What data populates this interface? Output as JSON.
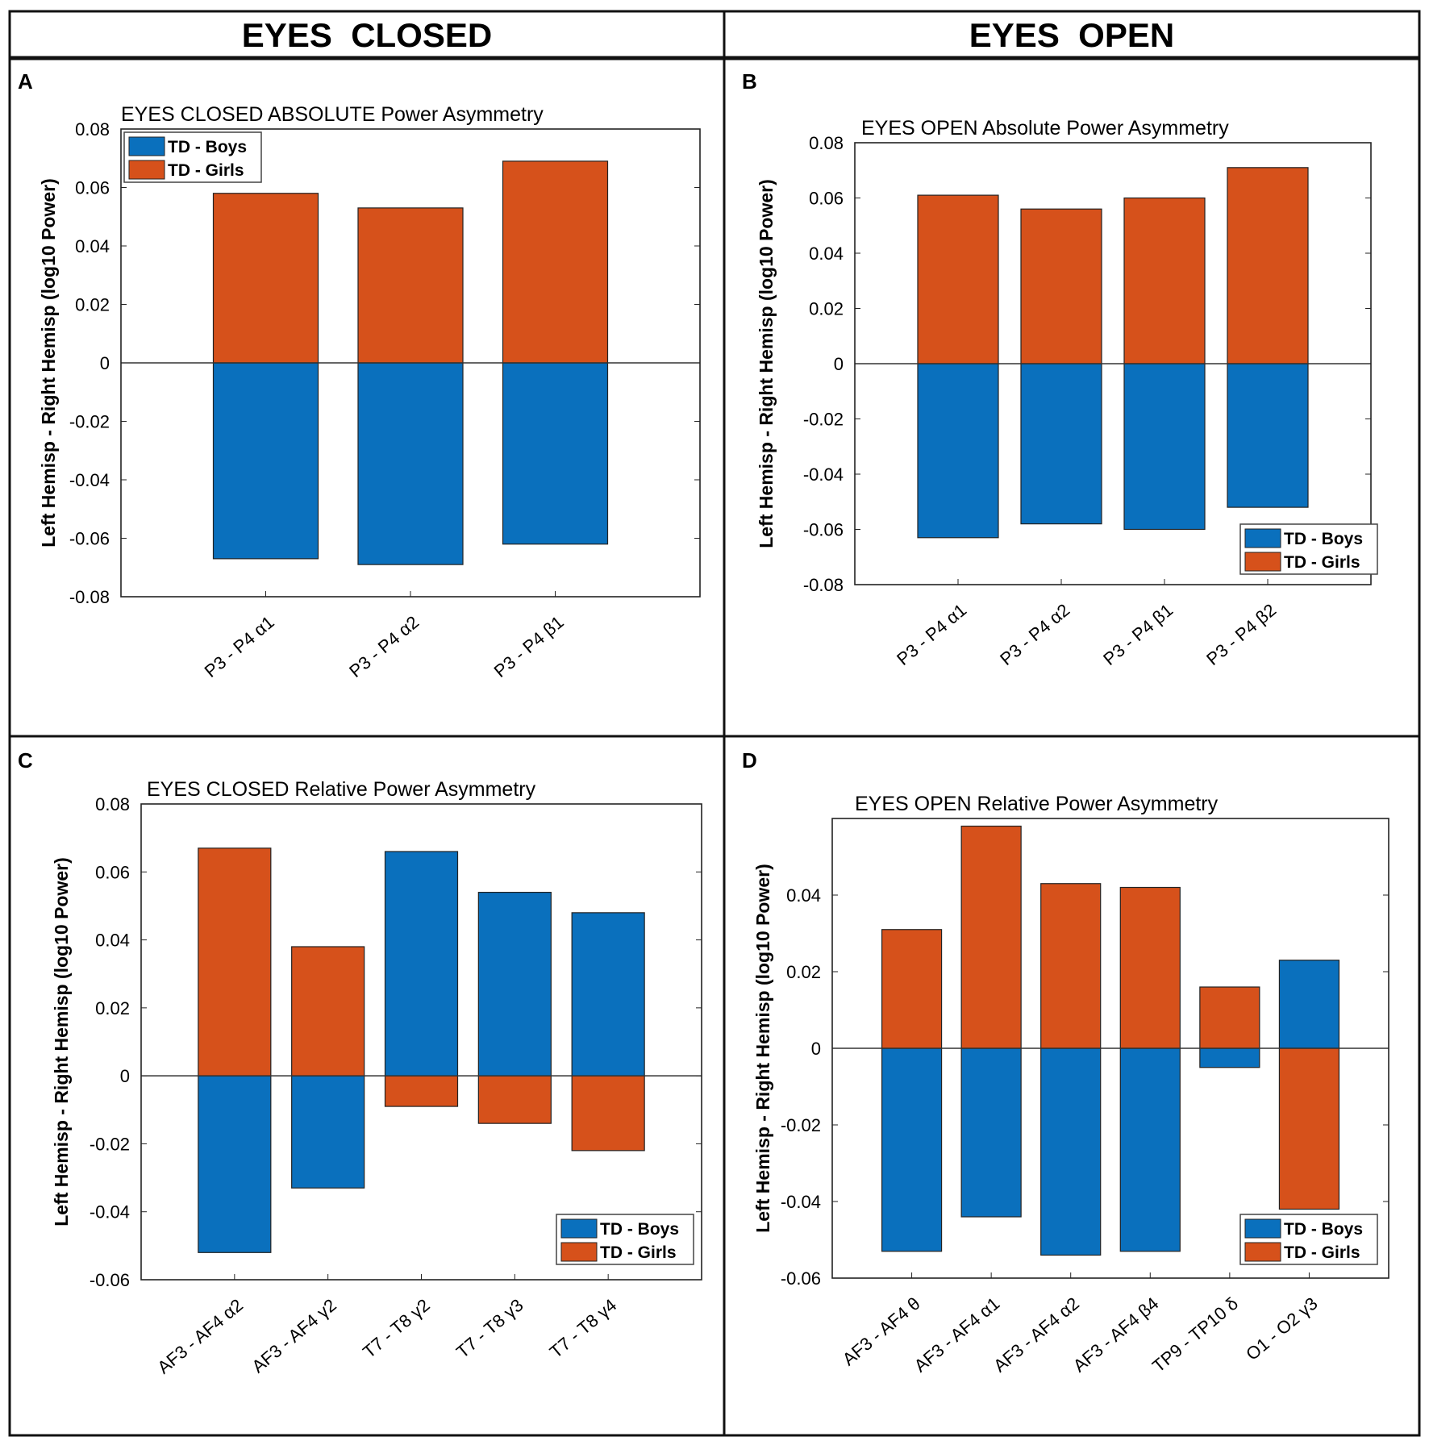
{
  "headers": {
    "left": "EYES  CLOSED",
    "right": "EYES  OPEN"
  },
  "colors": {
    "boys": "#0a70bd",
    "girls": "#d6511b",
    "frame": "#111111",
    "axis": "#222222"
  },
  "chart_data": [
    {
      "panel": "A",
      "type": "bar",
      "stacked": "diverging",
      "title": "EYES CLOSED    ABSOLUTE    Power  Asymmetry",
      "ylabel": "Left  Hemisp  -  Right  Hemisp    (log10 Power)",
      "ylim": [
        -0.08,
        0.08
      ],
      "yticks": [
        0.08,
        0.06,
        0.04,
        0.02,
        0,
        -0.02,
        -0.04,
        -0.06,
        -0.08
      ],
      "ytick_labels": [
        "0.08",
        "0.06",
        "0.04",
        "0.02",
        "0",
        "-0.02",
        "-0.04",
        "-0.06",
        "-0.08"
      ],
      "categories": [
        "P3 - P4      α1",
        "P3 - P4      α2",
        "P3 - P4      β1"
      ],
      "legend_position": "top-left",
      "series": [
        {
          "name": "TD - Boys",
          "values": [
            -0.067,
            -0.069,
            -0.062
          ]
        },
        {
          "name": "TD - Girls",
          "values": [
            0.058,
            0.053,
            0.069
          ]
        }
      ]
    },
    {
      "panel": "B",
      "type": "bar",
      "stacked": "diverging",
      "title": "EYES OPEN  Absolute  Power Asymmetry",
      "ylabel": "Left  Hemisp  -  Right  Hemisp    (log10 Power)",
      "ylim": [
        -0.08,
        0.08
      ],
      "yticks": [
        0.08,
        0.06,
        0.04,
        0.02,
        0,
        -0.02,
        -0.04,
        -0.06,
        -0.08
      ],
      "ytick_labels": [
        "0.08",
        "0.06",
        "0.04",
        "0.02",
        "0",
        "-0.02",
        "-0.04",
        "-0.06",
        "-0.08"
      ],
      "categories": [
        "P3 - P4      α1",
        "P3 - P4      α2",
        "P3 - P4      β1",
        "P3 - P4      β2"
      ],
      "legend_position": "bottom-right",
      "series": [
        {
          "name": "TD - Boys",
          "values": [
            -0.063,
            -0.058,
            -0.06,
            -0.052
          ]
        },
        {
          "name": "TD - Girls",
          "values": [
            0.061,
            0.056,
            0.06,
            0.071
          ]
        }
      ]
    },
    {
      "panel": "C",
      "type": "bar",
      "stacked": "diverging",
      "title": "EYES CLOSED     Relative    Power  Asymmetry",
      "ylabel": "Left  Hemisp  -  Right  Hemisp    (log10 Power)",
      "ylim": [
        -0.06,
        0.08
      ],
      "yticks": [
        0.08,
        0.06,
        0.04,
        0.02,
        0,
        -0.02,
        -0.04,
        -0.06
      ],
      "ytick_labels": [
        "0.08",
        "0.06",
        "0.04",
        "0.02",
        "0",
        "-0.02",
        "-0.04",
        "-0.06"
      ],
      "categories": [
        "AF3 - AF4      α2",
        "AF3 - AF4      γ2",
        "T7 - T8      γ2",
        "T7 - T8      γ3",
        "T7 - T8      γ4"
      ],
      "legend_position": "bottom-right",
      "series": [
        {
          "name": "TD - Boys",
          "values": [
            -0.052,
            -0.033,
            0.066,
            0.054,
            0.048
          ]
        },
        {
          "name": "TD - Girls",
          "values": [
            0.067,
            0.038,
            -0.009,
            -0.014,
            -0.022
          ]
        }
      ]
    },
    {
      "panel": "D",
      "type": "bar",
      "stacked": "diverging",
      "title": "EYES OPEN     Relative   Power  Asymmetry",
      "ylabel": "Left  Hemisp  -  Right  Hemisp    (log10 Power)",
      "ylim": [
        -0.06,
        0.06
      ],
      "yticks": [
        0.04,
        0.02,
        0,
        -0.02,
        -0.04,
        -0.06
      ],
      "ytick_labels": [
        "0.04",
        "0.02",
        "0",
        "-0.02",
        "-0.04",
        "-0.06"
      ],
      "categories": [
        "AF3 - AF4      θ",
        "AF3 - AF4      α1",
        "AF3 - AF4      α2",
        "AF3 - AF4      β4",
        "TP9 - TP10      δ",
        "O1 - O2      γ3"
      ],
      "legend_position": "bottom-right",
      "series": [
        {
          "name": "TD - Boys",
          "values": [
            -0.053,
            -0.044,
            -0.054,
            -0.053,
            -0.005,
            0.023
          ]
        },
        {
          "name": "TD - Girls",
          "values": [
            0.031,
            0.058,
            0.043,
            0.042,
            0.016,
            -0.042
          ]
        }
      ]
    }
  ]
}
